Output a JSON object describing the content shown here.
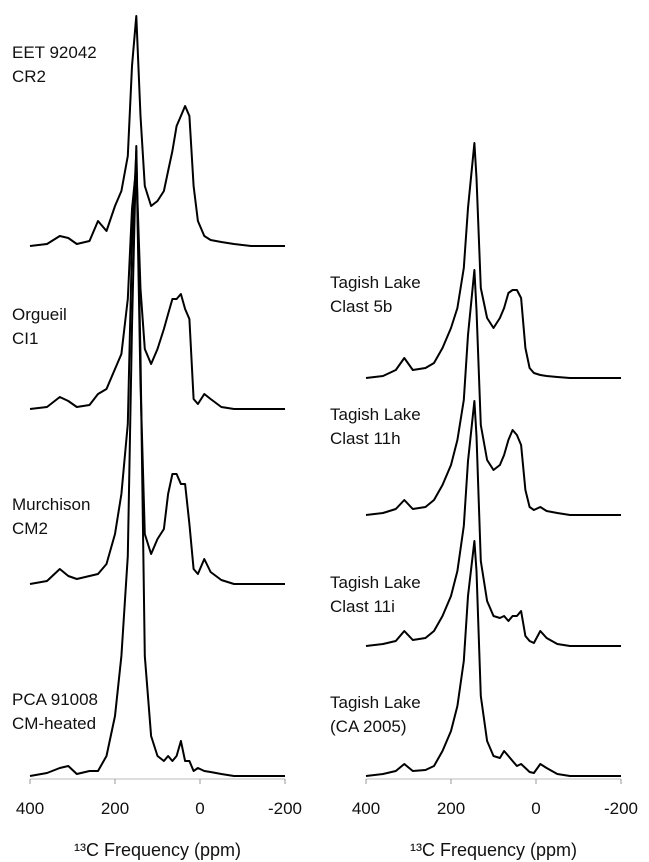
{
  "chart_data": [
    {
      "type": "line",
      "xlabel": "¹³C Frequency (ppm)",
      "xlim": [
        400,
        -200
      ],
      "xticks": [
        400,
        200,
        0,
        -200
      ],
      "x": [
        400,
        360,
        330,
        310,
        290,
        260,
        240,
        220,
        200,
        185,
        170,
        160,
        150,
        140,
        130,
        115,
        100,
        85,
        75,
        65,
        55,
        45,
        35,
        25,
        15,
        5,
        -10,
        -25,
        -50,
        -80,
        -120,
        -160,
        -200
      ],
      "series": [
        {
          "name": [
            "EET 92042",
            "CR2"
          ],
          "color": "#000000",
          "values": [
            0,
            2,
            10,
            8,
            2,
            5,
            25,
            15,
            40,
            55,
            90,
            180,
            230,
            130,
            60,
            40,
            45,
            55,
            75,
            95,
            120,
            130,
            140,
            130,
            60,
            25,
            10,
            6,
            4,
            2,
            0,
            0,
            0
          ]
        },
        {
          "name": [
            "Orgueil",
            "CI1"
          ],
          "color": "#000000",
          "values": [
            0,
            2,
            12,
            8,
            2,
            4,
            15,
            20,
            40,
            55,
            110,
            200,
            243,
            120,
            60,
            45,
            60,
            80,
            95,
            110,
            110,
            115,
            100,
            90,
            10,
            5,
            15,
            10,
            2,
            0,
            0,
            0,
            0
          ]
        },
        {
          "name": [
            "Murchison",
            "CM2"
          ],
          "color": "#000000",
          "values": [
            0,
            3,
            15,
            8,
            5,
            8,
            10,
            20,
            50,
            90,
            160,
            340,
            433,
            200,
            50,
            30,
            45,
            55,
            90,
            110,
            110,
            100,
            100,
            60,
            15,
            10,
            25,
            12,
            4,
            0,
            0,
            0,
            0
          ]
        },
        {
          "name": [
            "PCA 91008",
            "CM-heated"
          ],
          "color": "#000000",
          "values": [
            0,
            3,
            8,
            10,
            2,
            5,
            5,
            20,
            60,
            120,
            220,
            450,
            630,
            420,
            120,
            40,
            20,
            15,
            20,
            15,
            20,
            35,
            15,
            15,
            5,
            8,
            5,
            4,
            2,
            0,
            0,
            0,
            0
          ]
        }
      ]
    },
    {
      "type": "line",
      "xlabel": "¹³C Frequency (ppm)",
      "xlim": [
        400,
        -200
      ],
      "xticks": [
        400,
        200,
        0,
        -200
      ],
      "x": [
        400,
        360,
        330,
        310,
        290,
        260,
        240,
        220,
        200,
        185,
        170,
        160,
        145,
        140,
        130,
        115,
        100,
        85,
        75,
        65,
        55,
        45,
        35,
        25,
        15,
        5,
        -10,
        -25,
        -50,
        -80,
        -120,
        -160,
        -200
      ],
      "series": [
        {
          "name": [
            "Tagish Lake",
            "Clast 5b"
          ],
          "color": "#000000",
          "values": [
            0,
            2,
            8,
            20,
            8,
            10,
            15,
            30,
            50,
            70,
            110,
            170,
            235,
            200,
            90,
            60,
            50,
            60,
            70,
            85,
            88,
            88,
            80,
            30,
            10,
            5,
            3,
            2,
            1,
            0,
            0,
            0,
            0
          ]
        },
        {
          "name": [
            "Tagish Lake",
            "Clast 11h"
          ],
          "color": "#000000",
          "values": [
            0,
            2,
            6,
            15,
            6,
            8,
            15,
            30,
            50,
            75,
            115,
            180,
            245,
            205,
            90,
            55,
            45,
            50,
            60,
            75,
            85,
            80,
            70,
            25,
            8,
            5,
            8,
            4,
            2,
            0,
            0,
            0,
            0
          ]
        },
        {
          "name": [
            "Tagish Lake",
            "Clast 11i"
          ],
          "color": "#000000",
          "values": [
            0,
            2,
            5,
            15,
            6,
            8,
            15,
            30,
            50,
            75,
            120,
            185,
            245,
            210,
            85,
            45,
            30,
            28,
            30,
            25,
            30,
            30,
            35,
            10,
            5,
            3,
            15,
            8,
            2,
            0,
            0,
            0,
            0
          ]
        },
        {
          "name": [
            "Tagish Lake",
            "(CA 2005)"
          ],
          "color": "#000000",
          "values": [
            0,
            2,
            5,
            12,
            5,
            6,
            10,
            25,
            45,
            70,
            115,
            180,
            235,
            205,
            80,
            35,
            20,
            18,
            25,
            20,
            15,
            10,
            12,
            8,
            4,
            3,
            12,
            8,
            2,
            0,
            0,
            0,
            0
          ]
        }
      ]
    }
  ]
}
